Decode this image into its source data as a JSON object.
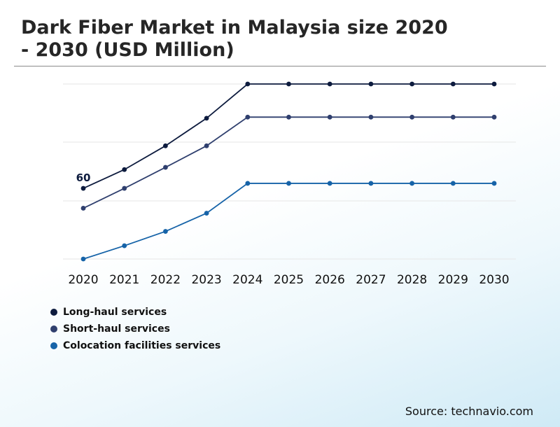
{
  "header": {
    "title_line1": "Dark Fiber Market in Malaysia size 2020",
    "title_line2": "- 2030 (USD Million)"
  },
  "source": "Source: technavio.com",
  "chart_data": {
    "type": "line",
    "categories": [
      "2020",
      "2021",
      "2022",
      "2023",
      "2024",
      "2025",
      "2026",
      "2027",
      "2028",
      "2029",
      "2030"
    ],
    "series": [
      {
        "name": "Long-haul services",
        "color": "#0d1b3e",
        "values": [
          60,
          63.4,
          67.7,
          72.7,
          78.9,
          78.9,
          78.9,
          78.9,
          78.9,
          78.9,
          78.9
        ]
      },
      {
        "name": "Short-haul services",
        "color": "#2f3f6e",
        "values": [
          56.4,
          60,
          63.8,
          67.7,
          72.9,
          72.9,
          72.9,
          72.9,
          72.9,
          72.9,
          72.9
        ]
      },
      {
        "name": "Colocation facilities services",
        "color": "#1663a8",
        "values": [
          47.2,
          49.6,
          52.2,
          55.5,
          60.9,
          60.9,
          60.9,
          60.9,
          60.9,
          60.9,
          60.9
        ]
      }
    ],
    "data_labels": [
      {
        "series": 0,
        "index": 0,
        "text": "60"
      }
    ],
    "ylim": [
      47.2,
      78.9
    ],
    "grid": true,
    "legend": "bottom-left"
  }
}
